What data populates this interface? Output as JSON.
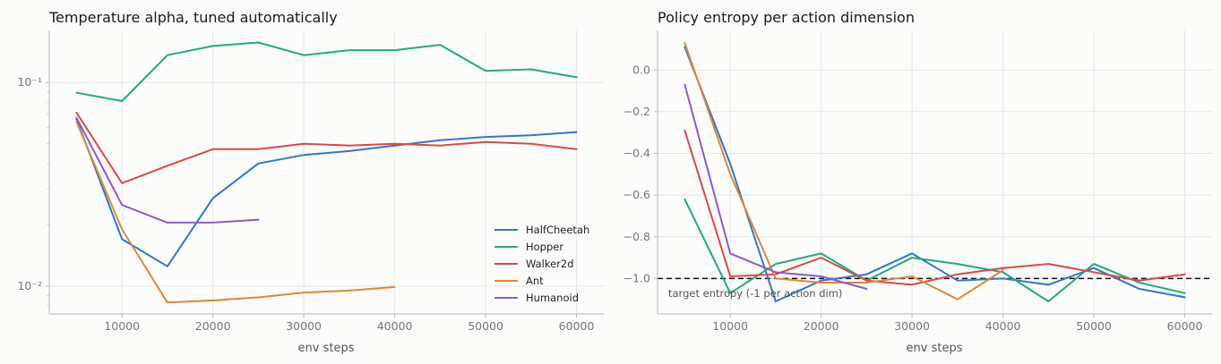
{
  "colors": {
    "HalfCheetah": "#2f78c8",
    "Hopper": "#22aa7e",
    "Walker2d": "#d94a4a",
    "Ant": "#e0873a",
    "Humanoid": "#8a5ccc"
  },
  "chart_data": [
    {
      "type": "line",
      "title": "Temperature alpha, tuned automatically",
      "xlabel": "env steps",
      "ylabel": "",
      "yscale": "log",
      "xlim": [
        2000,
        63000
      ],
      "ylim": [
        0.0073,
        0.18
      ],
      "xticks": [
        10000,
        20000,
        30000,
        40000,
        50000,
        60000
      ],
      "xtick_labels": [
        "10000",
        "20000",
        "30000",
        "40000",
        "50000",
        "60000"
      ],
      "yticks": [
        0.01,
        0.1
      ],
      "ytick_labels": [
        "10⁻²",
        "10⁻¹"
      ],
      "grid": true,
      "legend": "lower-right",
      "legend_entries": [
        "HalfCheetah",
        "Hopper",
        "Walker2d",
        "Ant",
        "Humanoid"
      ],
      "series": [
        {
          "name": "HalfCheetah",
          "x": [
            5000,
            10000,
            15000,
            20000,
            25000,
            30000,
            35000,
            40000,
            45000,
            50000,
            55000,
            60000
          ],
          "values": [
            0.066,
            0.017,
            0.0125,
            0.027,
            0.04,
            0.044,
            0.046,
            0.049,
            0.052,
            0.054,
            0.055,
            0.057
          ]
        },
        {
          "name": "Hopper",
          "x": [
            5000,
            10000,
            15000,
            20000,
            25000,
            30000,
            35000,
            40000,
            45000,
            50000,
            55000,
            60000
          ],
          "values": [
            0.089,
            0.081,
            0.136,
            0.151,
            0.157,
            0.136,
            0.144,
            0.144,
            0.153,
            0.114,
            0.116,
            0.106
          ]
        },
        {
          "name": "Walker2d",
          "x": [
            5000,
            10000,
            15000,
            20000,
            25000,
            30000,
            35000,
            40000,
            45000,
            50000,
            55000,
            60000
          ],
          "values": [
            0.071,
            0.032,
            0.039,
            0.047,
            0.047,
            0.05,
            0.049,
            0.05,
            0.049,
            0.051,
            0.05,
            0.047
          ]
        },
        {
          "name": "Ant",
          "x": [
            5000,
            10000,
            15000,
            20000,
            25000,
            30000,
            35000,
            40000
          ],
          "values": [
            0.064,
            0.019,
            0.0083,
            0.0085,
            0.0088,
            0.0093,
            0.0095,
            0.0099
          ]
        },
        {
          "name": "Humanoid",
          "x": [
            5000,
            10000,
            15000,
            20000,
            25000
          ],
          "values": [
            0.067,
            0.025,
            0.0205,
            0.0205,
            0.0212
          ]
        }
      ]
    },
    {
      "type": "line",
      "title": "Policy entropy per action dimension",
      "xlabel": "env steps",
      "ylabel": "",
      "xlim": [
        2000,
        63000
      ],
      "ylim": [
        -1.17,
        0.19
      ],
      "xticks": [
        10000,
        20000,
        30000,
        40000,
        50000,
        60000
      ],
      "xtick_labels": [
        "10000",
        "20000",
        "30000",
        "40000",
        "50000",
        "60000"
      ],
      "yticks": [
        0.0,
        -0.2,
        -0.4,
        -0.6,
        -0.8,
        -1.0
      ],
      "ytick_labels": [
        "0.0",
        "−0.2",
        "−0.4",
        "−0.6",
        "−0.8",
        "−1.0"
      ],
      "grid": true,
      "reference_line": {
        "y": -1.0,
        "label": "target entropy (-1 per action dim)"
      },
      "series": [
        {
          "name": "HalfCheetah",
          "x": [
            5000,
            10000,
            15000,
            20000,
            25000,
            30000,
            35000,
            40000,
            45000,
            50000,
            55000,
            60000
          ],
          "values": [
            0.11,
            -0.45,
            -1.11,
            -1.01,
            -0.98,
            -0.88,
            -1.01,
            -1.0,
            -1.03,
            -0.95,
            -1.05,
            -1.09
          ]
        },
        {
          "name": "Hopper",
          "x": [
            5000,
            10000,
            15000,
            20000,
            25000,
            30000,
            35000,
            40000,
            45000,
            50000,
            55000,
            60000
          ],
          "values": [
            -0.62,
            -1.07,
            -0.93,
            -0.88,
            -1.01,
            -0.9,
            -0.93,
            -0.97,
            -1.11,
            -0.93,
            -1.02,
            -1.07
          ]
        },
        {
          "name": "Walker2d",
          "x": [
            5000,
            10000,
            15000,
            20000,
            25000,
            30000,
            35000,
            40000,
            45000,
            50000,
            55000,
            60000
          ],
          "values": [
            -0.29,
            -0.99,
            -0.98,
            -0.9,
            -1.01,
            -1.03,
            -0.98,
            -0.95,
            -0.93,
            -0.97,
            -1.01,
            -0.98
          ]
        },
        {
          "name": "Ant",
          "x": [
            5000,
            10000,
            15000,
            20000,
            25000,
            30000,
            35000,
            40000
          ],
          "values": [
            0.13,
            -0.5,
            -1.0,
            -1.02,
            -1.02,
            -0.99,
            -1.1,
            -0.96
          ]
        },
        {
          "name": "Humanoid",
          "x": [
            5000,
            10000,
            15000,
            20000,
            25000
          ],
          "values": [
            -0.07,
            -0.88,
            -0.97,
            -0.99,
            -1.05
          ]
        }
      ]
    }
  ]
}
